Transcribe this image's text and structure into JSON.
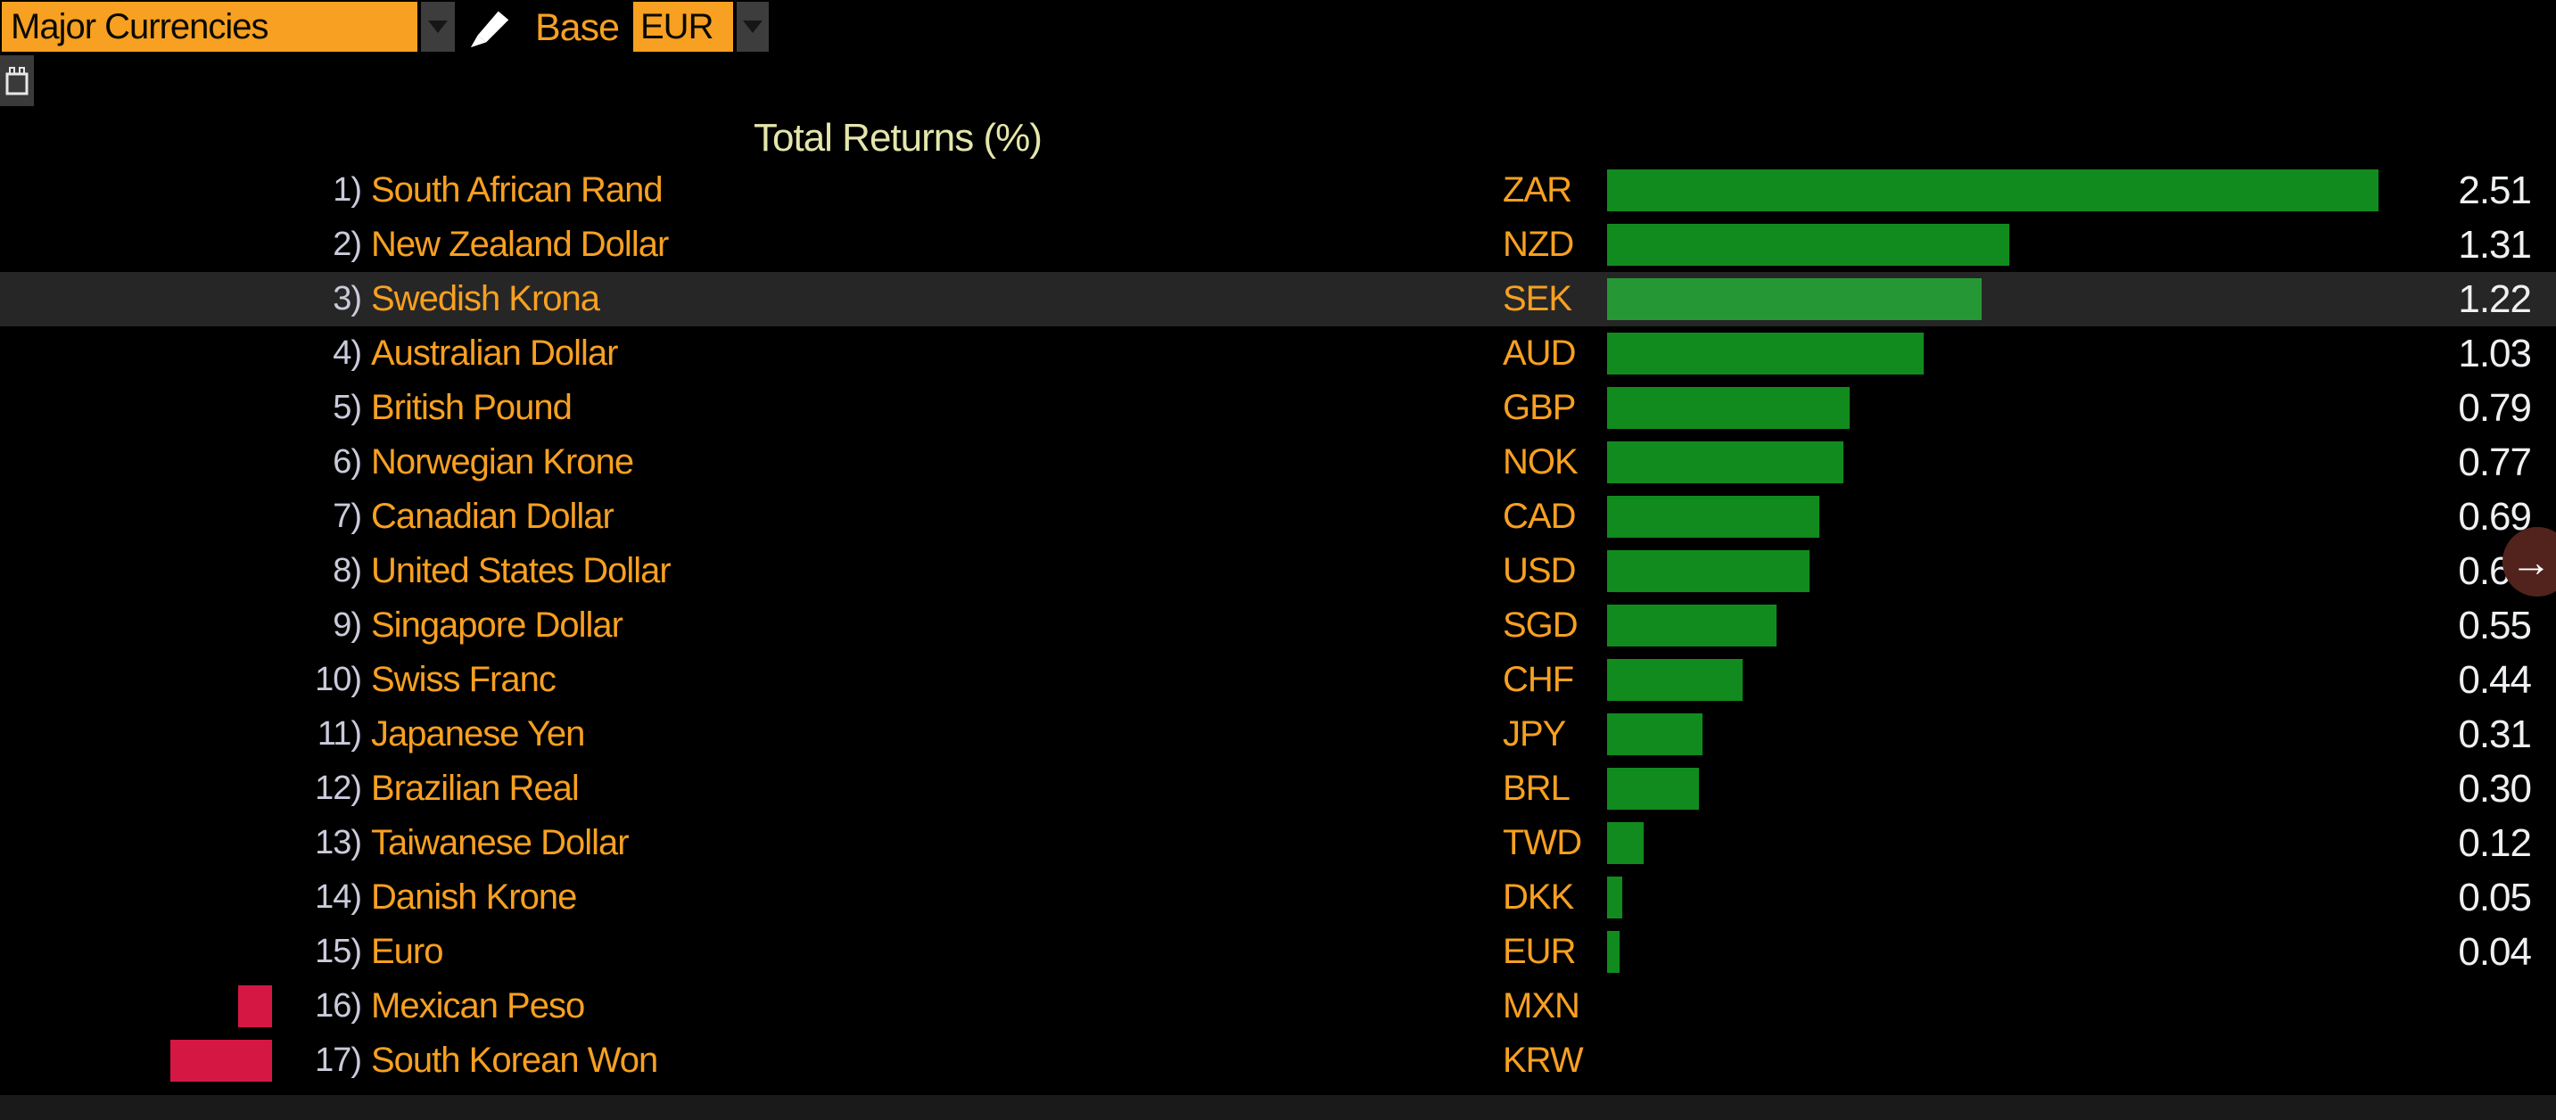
{
  "toolbar": {
    "preset_dropdown": {
      "value": "Major Currencies"
    },
    "base_label": "Base",
    "base_dropdown": {
      "value": "EUR"
    }
  },
  "title": "Total Returns (%)",
  "nav": {
    "arrow": "→"
  },
  "colors": {
    "accent_orange": "#f7a021",
    "title_color": "#e4e6ac",
    "rank_color": "#c9cbdb",
    "value_color": "#eef0f2",
    "bar_positive": "#118b1e",
    "bar_positive_selected": "#259735",
    "bar_negative": "#d51843",
    "nav_circle_color": "#52231d"
  },
  "chart_data": {
    "type": "bar",
    "orientation": "horizontal",
    "title": "Total Returns (%)",
    "unit": "%",
    "selected_index": 2,
    "rows": [
      {
        "rank": "1)",
        "name": "South African Rand",
        "code": "ZAR",
        "value": 2.51,
        "label": "2.51"
      },
      {
        "rank": "2)",
        "name": "New Zealand Dollar",
        "code": "NZD",
        "value": 1.31,
        "label": "1.31"
      },
      {
        "rank": "3)",
        "name": "Swedish Krona",
        "code": "SEK",
        "value": 1.22,
        "label": "1.22"
      },
      {
        "rank": "4)",
        "name": "Australian Dollar",
        "code": "AUD",
        "value": 1.03,
        "label": "1.03"
      },
      {
        "rank": "5)",
        "name": "British Pound",
        "code": "GBP",
        "value": 0.79,
        "label": "0.79"
      },
      {
        "rank": "6)",
        "name": "Norwegian Krone",
        "code": "NOK",
        "value": 0.77,
        "label": "0.77"
      },
      {
        "rank": "7)",
        "name": "Canadian Dollar",
        "code": "CAD",
        "value": 0.69,
        "label": "0.69"
      },
      {
        "rank": "8)",
        "name": "United States Dollar",
        "code": "USD",
        "value": 0.66,
        "label": "0.66"
      },
      {
        "rank": "9)",
        "name": "Singapore Dollar",
        "code": "SGD",
        "value": 0.55,
        "label": "0.55"
      },
      {
        "rank": "10)",
        "name": "Swiss Franc",
        "code": "CHF",
        "value": 0.44,
        "label": "0.44"
      },
      {
        "rank": "11)",
        "name": "Japanese Yen",
        "code": "JPY",
        "value": 0.31,
        "label": "0.31"
      },
      {
        "rank": "12)",
        "name": "Brazilian Real",
        "code": "BRL",
        "value": 0.3,
        "label": "0.30"
      },
      {
        "rank": "13)",
        "name": "Taiwanese Dollar",
        "code": "TWD",
        "value": 0.12,
        "label": "0.12"
      },
      {
        "rank": "14)",
        "name": "Danish Krone",
        "code": "DKK",
        "value": 0.05,
        "label": "0.05"
      },
      {
        "rank": "15)",
        "name": "Euro",
        "code": "EUR",
        "value": 0.04,
        "label": "0.04"
      },
      {
        "rank": "16)",
        "name": "Mexican Peso",
        "code": "MXN",
        "value": -0.11,
        "label": ""
      },
      {
        "rank": "17)",
        "name": "South Korean Won",
        "code": "KRW",
        "value": -0.33,
        "label": ""
      }
    ]
  }
}
